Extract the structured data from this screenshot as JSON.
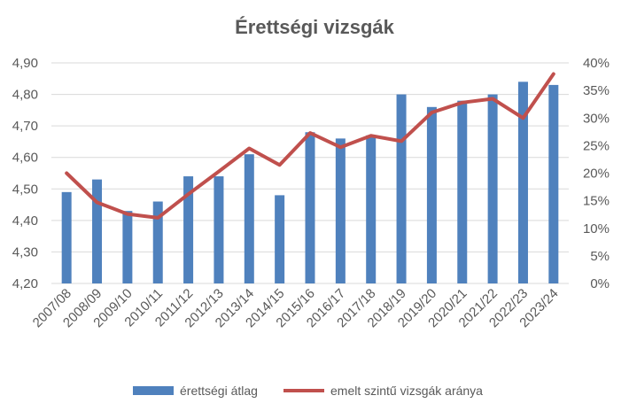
{
  "chart_data": {
    "type": "bar",
    "title": "Érettségi vizsgák",
    "categories": [
      "2007/08",
      "2008/09",
      "2009/10",
      "2010/11",
      "2011/12",
      "2012/13",
      "2013/14",
      "2014/15",
      "2015/16",
      "2016/17",
      "2017/18",
      "2018/19",
      "2019/20",
      "2020/21",
      "2021/22",
      "2022/23",
      "2023/24"
    ],
    "series": [
      {
        "name": "érettségi átlag",
        "type": "bar",
        "axis": "left",
        "color": "#4f81bd",
        "values": [
          4.49,
          4.53,
          4.43,
          4.46,
          4.54,
          4.54,
          4.61,
          4.48,
          4.68,
          4.66,
          4.67,
          4.8,
          4.76,
          4.78,
          4.8,
          4.84,
          4.83
        ]
      },
      {
        "name": "emelt szintű vizsgák aránya",
        "type": "line",
        "axis": "right",
        "color": "#c0504d",
        "values": [
          20.0,
          14.7,
          12.6,
          11.9,
          16.2,
          20.3,
          24.5,
          21.5,
          27.3,
          24.7,
          26.8,
          25.8,
          31.0,
          32.8,
          33.5,
          30.0,
          38.0
        ]
      }
    ],
    "y_left": {
      "min": 4.2,
      "max": 4.9,
      "step": 0.1,
      "tick_labels": [
        "4,20",
        "4,30",
        "4,40",
        "4,50",
        "4,60",
        "4,70",
        "4,80",
        "4,90"
      ]
    },
    "y_right": {
      "min": 0,
      "max": 40,
      "step": 5,
      "tick_labels": [
        "0%",
        "5%",
        "10%",
        "15%",
        "20%",
        "25%",
        "30%",
        "35%",
        "40%"
      ]
    },
    "grid": true,
    "legend_position": "bottom"
  }
}
